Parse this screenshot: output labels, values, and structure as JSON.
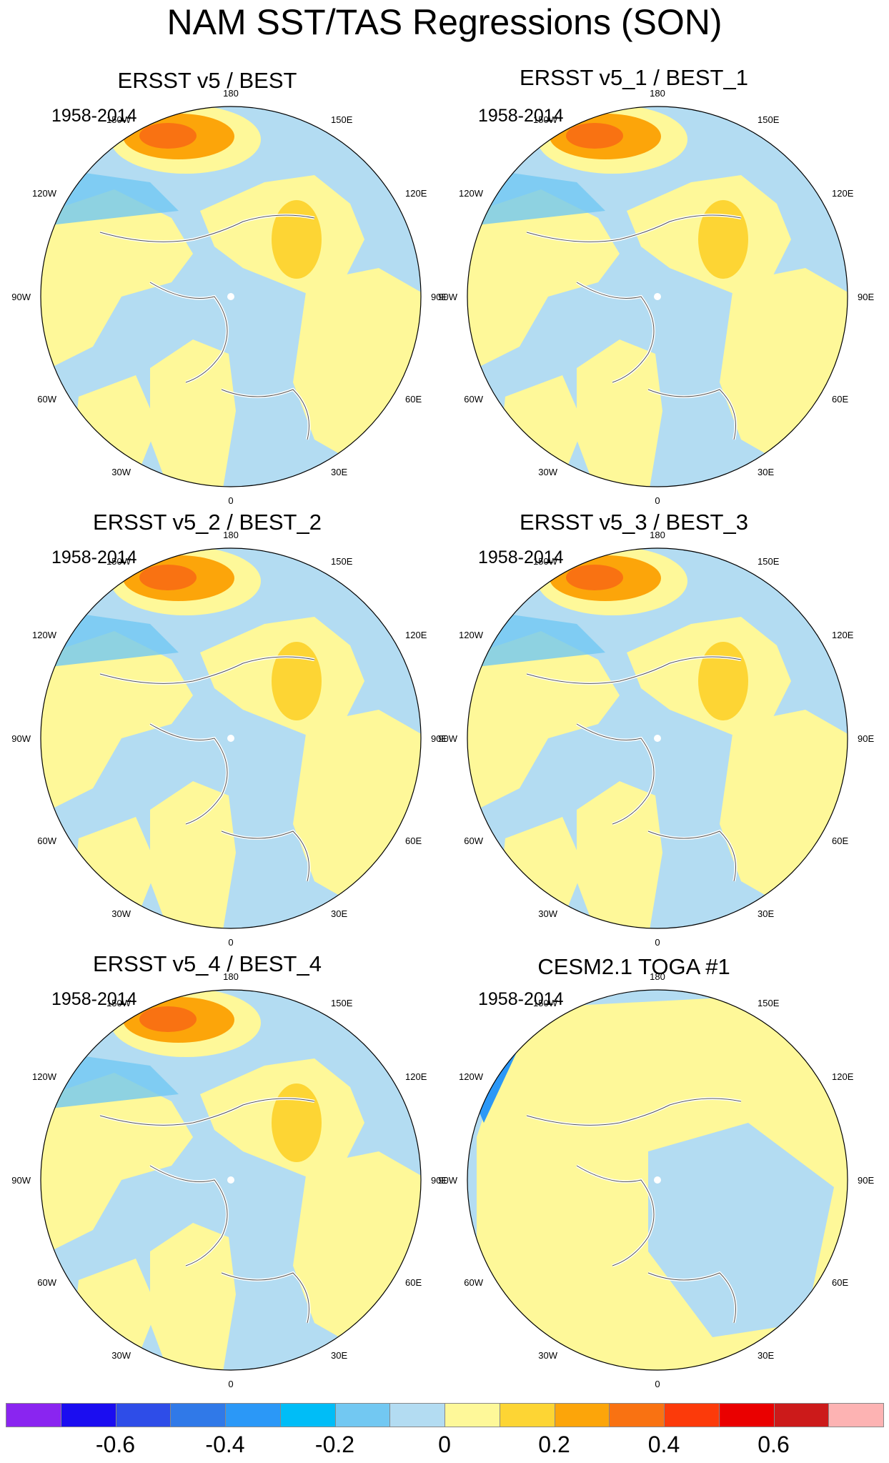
{
  "title": "NAM SST/TAS Regressions (SON)",
  "panels": [
    {
      "title": "ERSST v5 / BEST",
      "period": "1958-2014"
    },
    {
      "title": "ERSST v5_1 / BEST_1",
      "period": "1958-2014"
    },
    {
      "title": "ERSST v5_2 / BEST_2",
      "period": "1958-2014"
    },
    {
      "title": "ERSST v5_3 / BEST_3",
      "period": "1958-2014"
    },
    {
      "title": "ERSST v5_4 / BEST_4",
      "period": "1958-2014"
    },
    {
      "title": "CESM2.1 TOGA #1",
      "period": "1958-2014"
    }
  ],
  "longitude_labels": {
    "top": "180",
    "upper_left": "150W",
    "upper_right": "150E",
    "mid_upper_left": "120W",
    "mid_upper_right": "120E",
    "left": "90W",
    "right": "90E",
    "mid_lower_left": "60W",
    "mid_lower_right": "60E",
    "lower_left": "30W",
    "lower_right": "30E",
    "bottom": "0"
  },
  "colors": {
    "ocean_light_blue": "#b3dcf2",
    "land_pale_yellow": "#fef899",
    "orange": "#fca50a",
    "deep_orange": "#f97212"
  },
  "colorbar": {
    "colors": [
      "#8a25f0",
      "#1b0df0",
      "#2e4de8",
      "#3079e8",
      "#2b98f7",
      "#00bdf7",
      "#72c8f2",
      "#b3dcf2",
      "#fef899",
      "#fdd534",
      "#fca50a",
      "#f97212",
      "#fc3a0a",
      "#ea0000",
      "#cc1a1a",
      "#fdb3b3"
    ],
    "labels": [
      "-0.6",
      "-0.4",
      "-0.2",
      "0",
      "0.2",
      "0.4",
      "0.6"
    ]
  }
}
